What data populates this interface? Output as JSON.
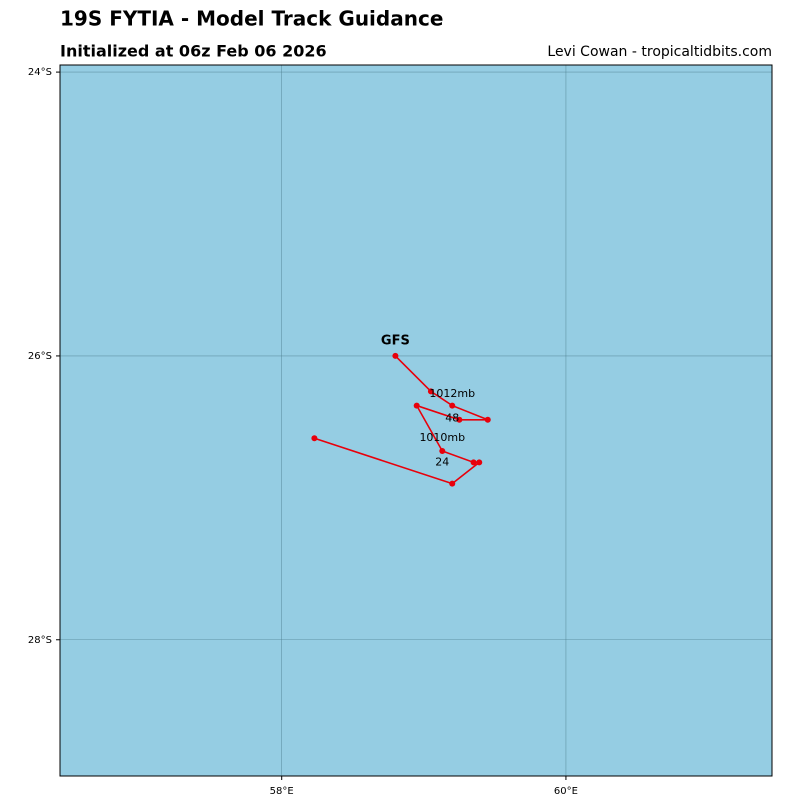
{
  "chart_data": {
    "type": "line",
    "title": "19S FYTIA - Model Track Guidance",
    "subtitle": "Initialized at 06z Feb 06 2026",
    "credit": "Levi Cowan - tropicaltidbits.com",
    "xlim": [
      56.44,
      61.45
    ],
    "ylim": [
      -28.96,
      -23.95
    ],
    "xticks": [
      {
        "value": 58,
        "label": "58°E"
      },
      {
        "value": 60,
        "label": "60°E"
      }
    ],
    "yticks": [
      {
        "value": -24,
        "label": "24°S"
      },
      {
        "value": -26,
        "label": "26°S"
      },
      {
        "value": -28,
        "label": "28°S"
      }
    ],
    "grid": true,
    "background": "#95cde3",
    "series": [
      {
        "name": "GFS",
        "color": "#e8000b",
        "x": [
          58.8,
          59.05,
          59.2,
          59.45,
          59.25,
          58.95,
          59.13,
          59.35,
          59.39,
          59.2,
          58.23
        ],
        "values": [
          -26.0,
          -26.25,
          -26.35,
          -26.45,
          -26.45,
          -26.35,
          -26.67,
          -26.75,
          -26.75,
          -26.9,
          -26.58
        ]
      }
    ],
    "annotations": [
      {
        "text": "1012mb",
        "x": 59.2,
        "y": -26.27
      },
      {
        "text": "48",
        "x": 59.2,
        "y": -26.44
      },
      {
        "text": "1010mb",
        "x": 59.13,
        "y": -26.58
      },
      {
        "text": "24",
        "x": 59.13,
        "y": -26.75
      }
    ]
  }
}
